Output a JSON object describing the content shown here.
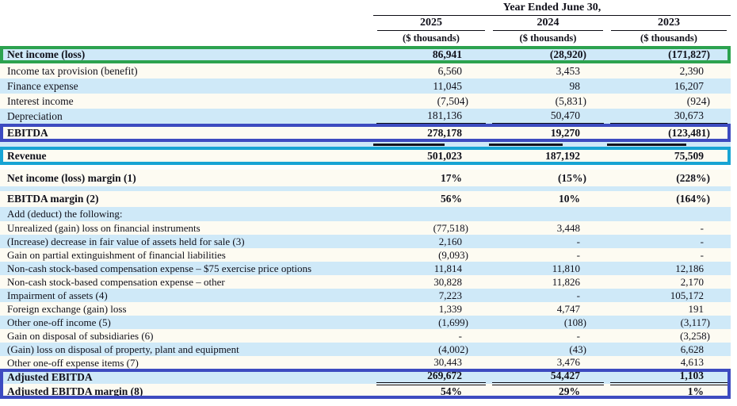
{
  "title": "EBITDA and Adjusted EBITDA reconciliation table",
  "colors": {
    "highlight_green": "#2ca24f",
    "highlight_indigo": "#3d4bc0",
    "highlight_cyan": "#18a4d4",
    "row_blue": "#cfe9f8",
    "row_paper": "#fdfbf2"
  },
  "header": {
    "span_title": "Year Ended June 30,",
    "columns": [
      {
        "year": "2025",
        "unit": "($ thousands)"
      },
      {
        "year": "2024",
        "unit": "($ thousands)"
      },
      {
        "year": "2023",
        "unit": "($ thousands)"
      }
    ]
  },
  "table": {
    "rows": [
      {
        "type": "data",
        "label": "Net income (loss)",
        "values": [
          "86,941",
          "(28,920)",
          "(171,827)"
        ],
        "bold": true,
        "stripe": "blue",
        "box": "green",
        "kind": "head"
      },
      {
        "type": "data",
        "label": "Income tax provision (benefit)",
        "values": [
          "6,560",
          "3,453",
          "2,390"
        ],
        "stripe": "paper",
        "kind": "std"
      },
      {
        "type": "data",
        "label": "Finance expense",
        "values": [
          "11,045",
          "98",
          "16,207"
        ],
        "stripe": "blue",
        "kind": "std"
      },
      {
        "type": "data",
        "label": "Interest income",
        "values": [
          "(7,504)",
          "(5,831)",
          "(924)"
        ],
        "stripe": "paper",
        "kind": "std"
      },
      {
        "type": "data",
        "label": "Depreciation",
        "values": [
          "181,136",
          "50,470",
          "30,673"
        ],
        "stripe": "blue",
        "kind": "std",
        "rule": "below"
      },
      {
        "type": "data",
        "label": "EBITDA",
        "values": [
          "278,178",
          "19,270",
          "(123,481)"
        ],
        "bold": true,
        "stripe": "paper",
        "box": "indigo",
        "kind": "boxrow"
      },
      {
        "type": "spacer",
        "stripe": "blue",
        "kind": "strip",
        "marks": true
      },
      {
        "type": "data",
        "label": "Revenue",
        "values": [
          "501,023",
          "187,192",
          "75,509"
        ],
        "bold": true,
        "stripe": "paper",
        "box": "cyan",
        "kind": "boxrow"
      },
      {
        "type": "spacer",
        "stripe": "none",
        "kind": "strip"
      },
      {
        "type": "data",
        "label": "Net income (loss) margin (1)",
        "values": [
          "17%",
          "(15%)",
          "(228%)"
        ],
        "bold": true,
        "stripe": "paper",
        "kind": "marginA"
      },
      {
        "type": "spacer",
        "stripe": "blue",
        "kind": "strip"
      },
      {
        "type": "data",
        "label": "EBITDA margin (2)",
        "values": [
          "56%",
          "10%",
          "(164%)"
        ],
        "bold": true,
        "stripe": "paper",
        "kind": "marginB"
      },
      {
        "type": "data",
        "label": "Add (deduct) the following:",
        "values": [
          "",
          "",
          ""
        ],
        "stripe": "blue",
        "kind": "section"
      },
      {
        "type": "data",
        "label": "Unrealized (gain) loss on financial instruments",
        "values": [
          "(77,518)",
          "3,448",
          "-"
        ],
        "stripe": "paper",
        "kind": "compact"
      },
      {
        "type": "data",
        "label": "(Increase) decrease in fair value of assets held for sale (3)",
        "values": [
          "2,160",
          "-",
          "-"
        ],
        "stripe": "blue",
        "kind": "compact"
      },
      {
        "type": "data",
        "label": "Gain on partial extinguishment of financial liabilities",
        "values": [
          "(9,093)",
          "-",
          "-"
        ],
        "stripe": "paper",
        "kind": "compact"
      },
      {
        "type": "data",
        "label": "Non-cash stock-based compensation expense – $75 exercise price options",
        "values": [
          "11,814",
          "11,810",
          "12,186"
        ],
        "stripe": "blue",
        "kind": "compact"
      },
      {
        "type": "data",
        "label": "Non-cash stock-based compensation expense – other",
        "values": [
          "30,828",
          "11,826",
          "2,170"
        ],
        "stripe": "paper",
        "kind": "compact"
      },
      {
        "type": "data",
        "label": "Impairment of assets (4)",
        "values": [
          "7,223",
          "-",
          "105,172"
        ],
        "stripe": "blue",
        "kind": "compact"
      },
      {
        "type": "data",
        "label": "Foreign exchange (gain) loss",
        "values": [
          "1,339",
          "4,747",
          "191"
        ],
        "stripe": "paper",
        "kind": "compact"
      },
      {
        "type": "data",
        "label": "Other one-off income (5)",
        "values": [
          "(1,699)",
          "(108)",
          "(3,117)"
        ],
        "stripe": "blue",
        "kind": "compact"
      },
      {
        "type": "data",
        "label": "Gain on disposal of subsidiaries (6)",
        "values": [
          "-",
          "-",
          "(3,258)"
        ],
        "stripe": "paper",
        "kind": "compact"
      },
      {
        "type": "data",
        "label": "(Gain) loss on disposal of property, plant and equipment",
        "values": [
          "(4,002)",
          "(43)",
          "6,628"
        ],
        "stripe": "blue",
        "kind": "compact"
      },
      {
        "type": "data",
        "label": "Other one-off expense items (7)",
        "values": [
          "30,443",
          "3,476",
          "4,613"
        ],
        "stripe": "paper",
        "kind": "last",
        "rule": "below"
      },
      {
        "type": "data",
        "label": "Adjusted EBITDA",
        "values": [
          "269,672",
          "54,427",
          "1,103"
        ],
        "bold": true,
        "stripe": "blue",
        "kind": "foot",
        "rule": "top-dbl",
        "group": "adjusted"
      },
      {
        "type": "data",
        "label": "Adjusted EBITDA margin (8)",
        "values": [
          "54%",
          "29%",
          "1%"
        ],
        "bold": true,
        "stripe": "paper",
        "kind": "foot",
        "group": "adjusted"
      }
    ]
  }
}
